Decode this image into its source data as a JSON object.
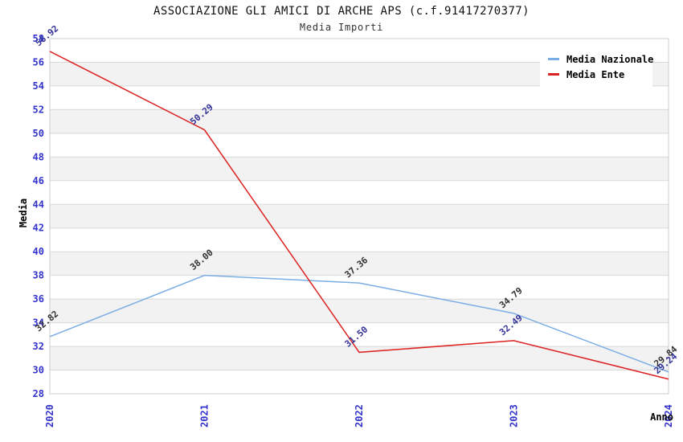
{
  "header": {
    "title": "ASSOCIAZIONE GLI AMICI DI ARCHE APS (c.f.91417270377)",
    "subtitle": "Media Importi"
  },
  "legend": {
    "items": [
      {
        "label": "Media Nazionale",
        "color": "#7aade4"
      },
      {
        "label": "Media Ente",
        "color": "#dd2222"
      }
    ]
  },
  "chart_data": {
    "type": "line",
    "title": "ASSOCIAZIONE GLI AMICI DI ARCHE APS (c.f.91417270377)",
    "subtitle": "Media Importi",
    "xlabel": "Anno",
    "ylabel": "Media",
    "categories": [
      "2020",
      "2021",
      "2022",
      "2023",
      "2024"
    ],
    "series": [
      {
        "name": "Media Nazionale",
        "color": "#7aade4",
        "label_color": "#333333",
        "values": [
          32.82,
          38.0,
          37.36,
          34.79,
          29.84
        ],
        "value_labels": [
          "32.82",
          "38.00",
          "37.36",
          "34.79",
          "29.84"
        ]
      },
      {
        "name": "Media Ente",
        "color": "#dd2222",
        "label_color": "#333399",
        "values": [
          56.92,
          50.29,
          31.5,
          32.49,
          29.24
        ],
        "value_labels": [
          "56.92",
          "50.29",
          "31.50",
          "32.49",
          "29.24"
        ]
      }
    ],
    "ylim": [
      28,
      58
    ],
    "ytick_step": 2,
    "yticks": [
      28,
      30,
      32,
      34,
      36,
      38,
      40,
      42,
      44,
      46,
      48,
      50,
      52,
      54,
      56,
      58
    ],
    "grid": "horizontal-lines-with-alternating-bands",
    "legend_position": "top-right-inside",
    "colors": {
      "tick_label": "#3333cc",
      "band": "#f2f2f2",
      "gridline": "#d9d9d9",
      "plot_border": "#cccccc",
      "background": "#ffffff"
    }
  }
}
